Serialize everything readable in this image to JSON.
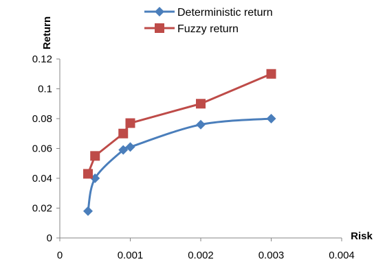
{
  "chart_data": {
    "type": "line",
    "xlabel": "Risk",
    "ylabel": "Return",
    "xlim": [
      0,
      0.004
    ],
    "ylim": [
      0,
      0.12
    ],
    "xticks": [
      0,
      0.001,
      0.002,
      0.003,
      0.004
    ],
    "xtick_labels": [
      "0",
      "0.001",
      "0.002",
      "0.003",
      "0.004"
    ],
    "yticks": [
      0,
      0.02,
      0.04,
      0.06,
      0.08,
      0.1,
      0.12
    ],
    "ytick_labels": [
      "0",
      "0.02",
      "0.04",
      "0.06",
      "0.08",
      "0.1",
      "0.12"
    ],
    "grid": false,
    "legend_position": "top",
    "series": [
      {
        "name": "Deterministic return",
        "color": "#4a7ebb",
        "marker": "diamond",
        "smooth": true,
        "points": [
          [
            0.0004,
            0.018
          ],
          [
            0.0005,
            0.04
          ],
          [
            0.0009,
            0.059
          ],
          [
            0.001,
            0.061
          ],
          [
            0.002,
            0.076
          ],
          [
            0.003,
            0.08
          ]
        ]
      },
      {
        "name": "Fuzzy return",
        "color": "#be4b48",
        "marker": "square",
        "smooth": false,
        "points": [
          [
            0.0004,
            0.043
          ],
          [
            0.0005,
            0.055
          ],
          [
            0.0009,
            0.07
          ],
          [
            0.001,
            0.077
          ],
          [
            0.002,
            0.09
          ],
          [
            0.003,
            0.11
          ]
        ]
      }
    ]
  }
}
